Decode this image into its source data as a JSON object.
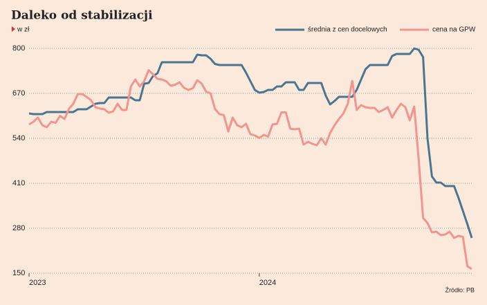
{
  "chart_data": {
    "type": "line",
    "title": "Daleko od stabilizacji",
    "subtitle": "w zł",
    "source": "Źródło: PB",
    "categories": [
      "2023",
      null,
      null,
      null,
      null,
      null,
      null,
      null,
      null,
      null,
      null,
      null,
      null,
      null,
      null,
      null,
      null,
      null,
      null,
      null,
      null,
      null,
      null,
      null,
      null,
      null,
      null,
      null,
      null,
      null,
      null,
      null,
      null,
      null,
      null,
      null,
      null,
      null,
      null,
      null,
      null,
      null,
      null,
      null,
      null,
      null,
      null,
      null,
      null,
      null,
      null,
      null,
      "2024",
      null,
      null,
      null,
      null,
      null,
      null,
      null,
      null,
      null,
      null,
      null,
      null,
      null,
      null,
      null,
      null,
      null,
      null,
      null,
      null,
      null,
      null,
      null,
      null,
      null,
      null,
      null,
      null,
      null,
      null,
      null,
      null,
      null,
      null,
      null,
      null,
      null,
      null,
      null,
      null,
      null,
      null,
      null,
      null,
      null,
      null,
      null,
      null
    ],
    "series": [
      {
        "name": "średnia z cen docelowych",
        "color": "#4a7590",
        "values": [
          612,
          610,
          610,
          610,
          616,
          616,
          616,
          616,
          616,
          616,
          616,
          624,
          624,
          624,
          632,
          640,
          642,
          642,
          658,
          658,
          658,
          658,
          658,
          658,
          650,
          650,
          698,
          700,
          720,
          728,
          760,
          760,
          760,
          760,
          760,
          760,
          760,
          760,
          782,
          780,
          780,
          770,
          755,
          752,
          752,
          752,
          752,
          752,
          752,
          730,
          705,
          680,
          672,
          674,
          680,
          680,
          690,
          690,
          702,
          702,
          702,
          680,
          680,
          700,
          700,
          700,
          700,
          664,
          638,
          648,
          660,
          660,
          660,
          660,
          680,
          710,
          740,
          752,
          752,
          752,
          752,
          752,
          778,
          784,
          784,
          784,
          784,
          800,
          796,
          775,
          540,
          430,
          412,
          412,
          402,
          402,
          402,
          368,
          330,
          292,
          252
        ]
      },
      {
        "name": "cena na GPW",
        "color": "#f2948f",
        "values": [
          580,
          588,
          600,
          578,
          572,
          588,
          585,
          605,
          596,
          625,
          640,
          668,
          668,
          660,
          650,
          630,
          626,
          624,
          614,
          618,
          640,
          622,
          622,
          690,
          710,
          690,
          705,
          737,
          725,
          712,
          710,
          705,
          692,
          695,
          702,
          686,
          680,
          685,
          708,
          698,
          675,
          670,
          625,
          610,
          607,
          560,
          600,
          578,
          572,
          582,
          552,
          548,
          541,
          550,
          545,
          580,
          582,
          615,
          615,
          568,
          566,
          568,
          522,
          530,
          524,
          520,
          540,
          522,
          555,
          578,
          596,
          612,
          640,
          706,
          622,
          636,
          630,
          628,
          628,
          616,
          622,
          630,
          600,
          622,
          640,
          630,
          592,
          632,
          480,
          310,
          295,
          268,
          270,
          260,
          262,
          270,
          252,
          258,
          255,
          170,
          162
        ]
      }
    ],
    "ylim": [
      150,
      800
    ],
    "yticks": [
      150,
      280,
      410,
      540,
      670,
      800
    ],
    "grid": true,
    "legend": "top-right"
  }
}
